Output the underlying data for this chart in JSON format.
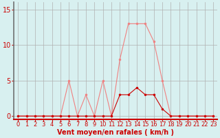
{
  "x": [
    0,
    1,
    2,
    3,
    4,
    5,
    6,
    7,
    8,
    9,
    10,
    11,
    12,
    13,
    14,
    15,
    16,
    17,
    18,
    19,
    20,
    21,
    22,
    23
  ],
  "rafales": [
    0,
    0,
    0,
    0,
    0,
    0,
    5,
    0,
    3,
    0,
    5,
    0,
    8,
    13,
    13,
    13,
    10.5,
    5,
    0,
    0,
    0,
    0,
    0,
    0
  ],
  "moyen": [
    0,
    0,
    0,
    0,
    0,
    0,
    0,
    0,
    0,
    0,
    0,
    0,
    3,
    3,
    4,
    3,
    3,
    1,
    0,
    0,
    0,
    0,
    0,
    0
  ],
  "line_color_rafales": "#f08080",
  "line_color_moyen": "#cc0000",
  "marker_color_rafales": "#f08080",
  "marker_color_moyen": "#cc0000",
  "bg_color": "#d8f0f0",
  "grid_color": "#b0b0b0",
  "xlabel": "Vent moyen/en rafales ( km/h )",
  "xlabel_color": "#cc0000",
  "xlabel_fontsize": 7,
  "tick_color": "#cc0000",
  "tick_fontsize": 6,
  "ylim": [
    -0.5,
    16
  ],
  "xlim": [
    -0.5,
    23.5
  ],
  "yticks": [
    0,
    5,
    10,
    15
  ],
  "ytick_fontsize": 7,
  "left_spine_color": "#707070",
  "bottom_spine_color": "#cc0000"
}
